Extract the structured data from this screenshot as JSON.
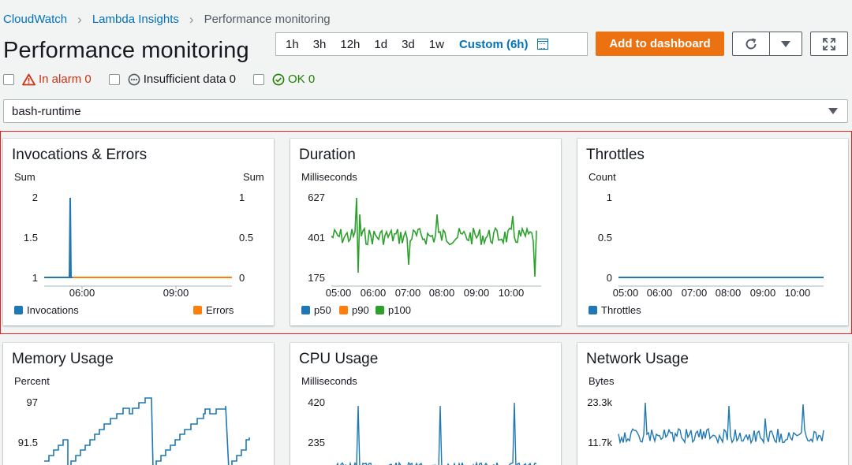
{
  "breadcrumb": {
    "items": [
      "CloudWatch",
      "Lambda Insights",
      "Performance monitoring"
    ]
  },
  "page": {
    "title": "Performance monitoring"
  },
  "time_range": {
    "options": [
      "1h",
      "3h",
      "12h",
      "1d",
      "3d",
      "1w"
    ],
    "custom_label": "Custom (6h)"
  },
  "actions": {
    "add_to_dashboard": "Add to dashboard"
  },
  "alarms": {
    "in_alarm": "In alarm 0",
    "insufficient": "Insufficient data 0",
    "ok": "OK 0"
  },
  "function_select": {
    "value": "bash-runtime"
  },
  "colors": {
    "blue": "#1f77b4",
    "orange": "#ff7f0e",
    "green": "#2ca02c",
    "accent": "#ec7211"
  },
  "widgets": {
    "invocations": {
      "title": "Invocations & Errors",
      "left_unit": "Sum",
      "right_unit": "Sum",
      "left_ticks": [
        "2",
        "1.5",
        "1"
      ],
      "right_ticks": [
        "1",
        "0.5",
        "0"
      ],
      "x_ticks": [
        "06:00",
        "09:00"
      ],
      "legend": [
        "Invocations",
        "Errors"
      ]
    },
    "duration": {
      "title": "Duration",
      "unit": "Milliseconds",
      "y_ticks": [
        "627",
        "401",
        "175"
      ],
      "x_ticks": [
        "05:00",
        "06:00",
        "07:00",
        "08:00",
        "09:00",
        "10:00"
      ],
      "legend": [
        "p50",
        "p90",
        "p100"
      ]
    },
    "throttles": {
      "title": "Throttles",
      "unit": "Count",
      "y_ticks": [
        "1",
        "0.5",
        "0"
      ],
      "x_ticks": [
        "05:00",
        "06:00",
        "07:00",
        "08:00",
        "09:00",
        "10:00"
      ],
      "legend": [
        "Throttles"
      ]
    },
    "memory": {
      "title": "Memory Usage",
      "unit": "Percent",
      "y_ticks": [
        "97",
        "91.5"
      ]
    },
    "cpu": {
      "title": "CPU Usage",
      "unit": "Milliseconds",
      "y_ticks": [
        "420",
        "235"
      ]
    },
    "network": {
      "title": "Network Usage",
      "unit": "Bytes",
      "y_ticks": [
        "23.3k",
        "11.7k"
      ]
    }
  }
}
